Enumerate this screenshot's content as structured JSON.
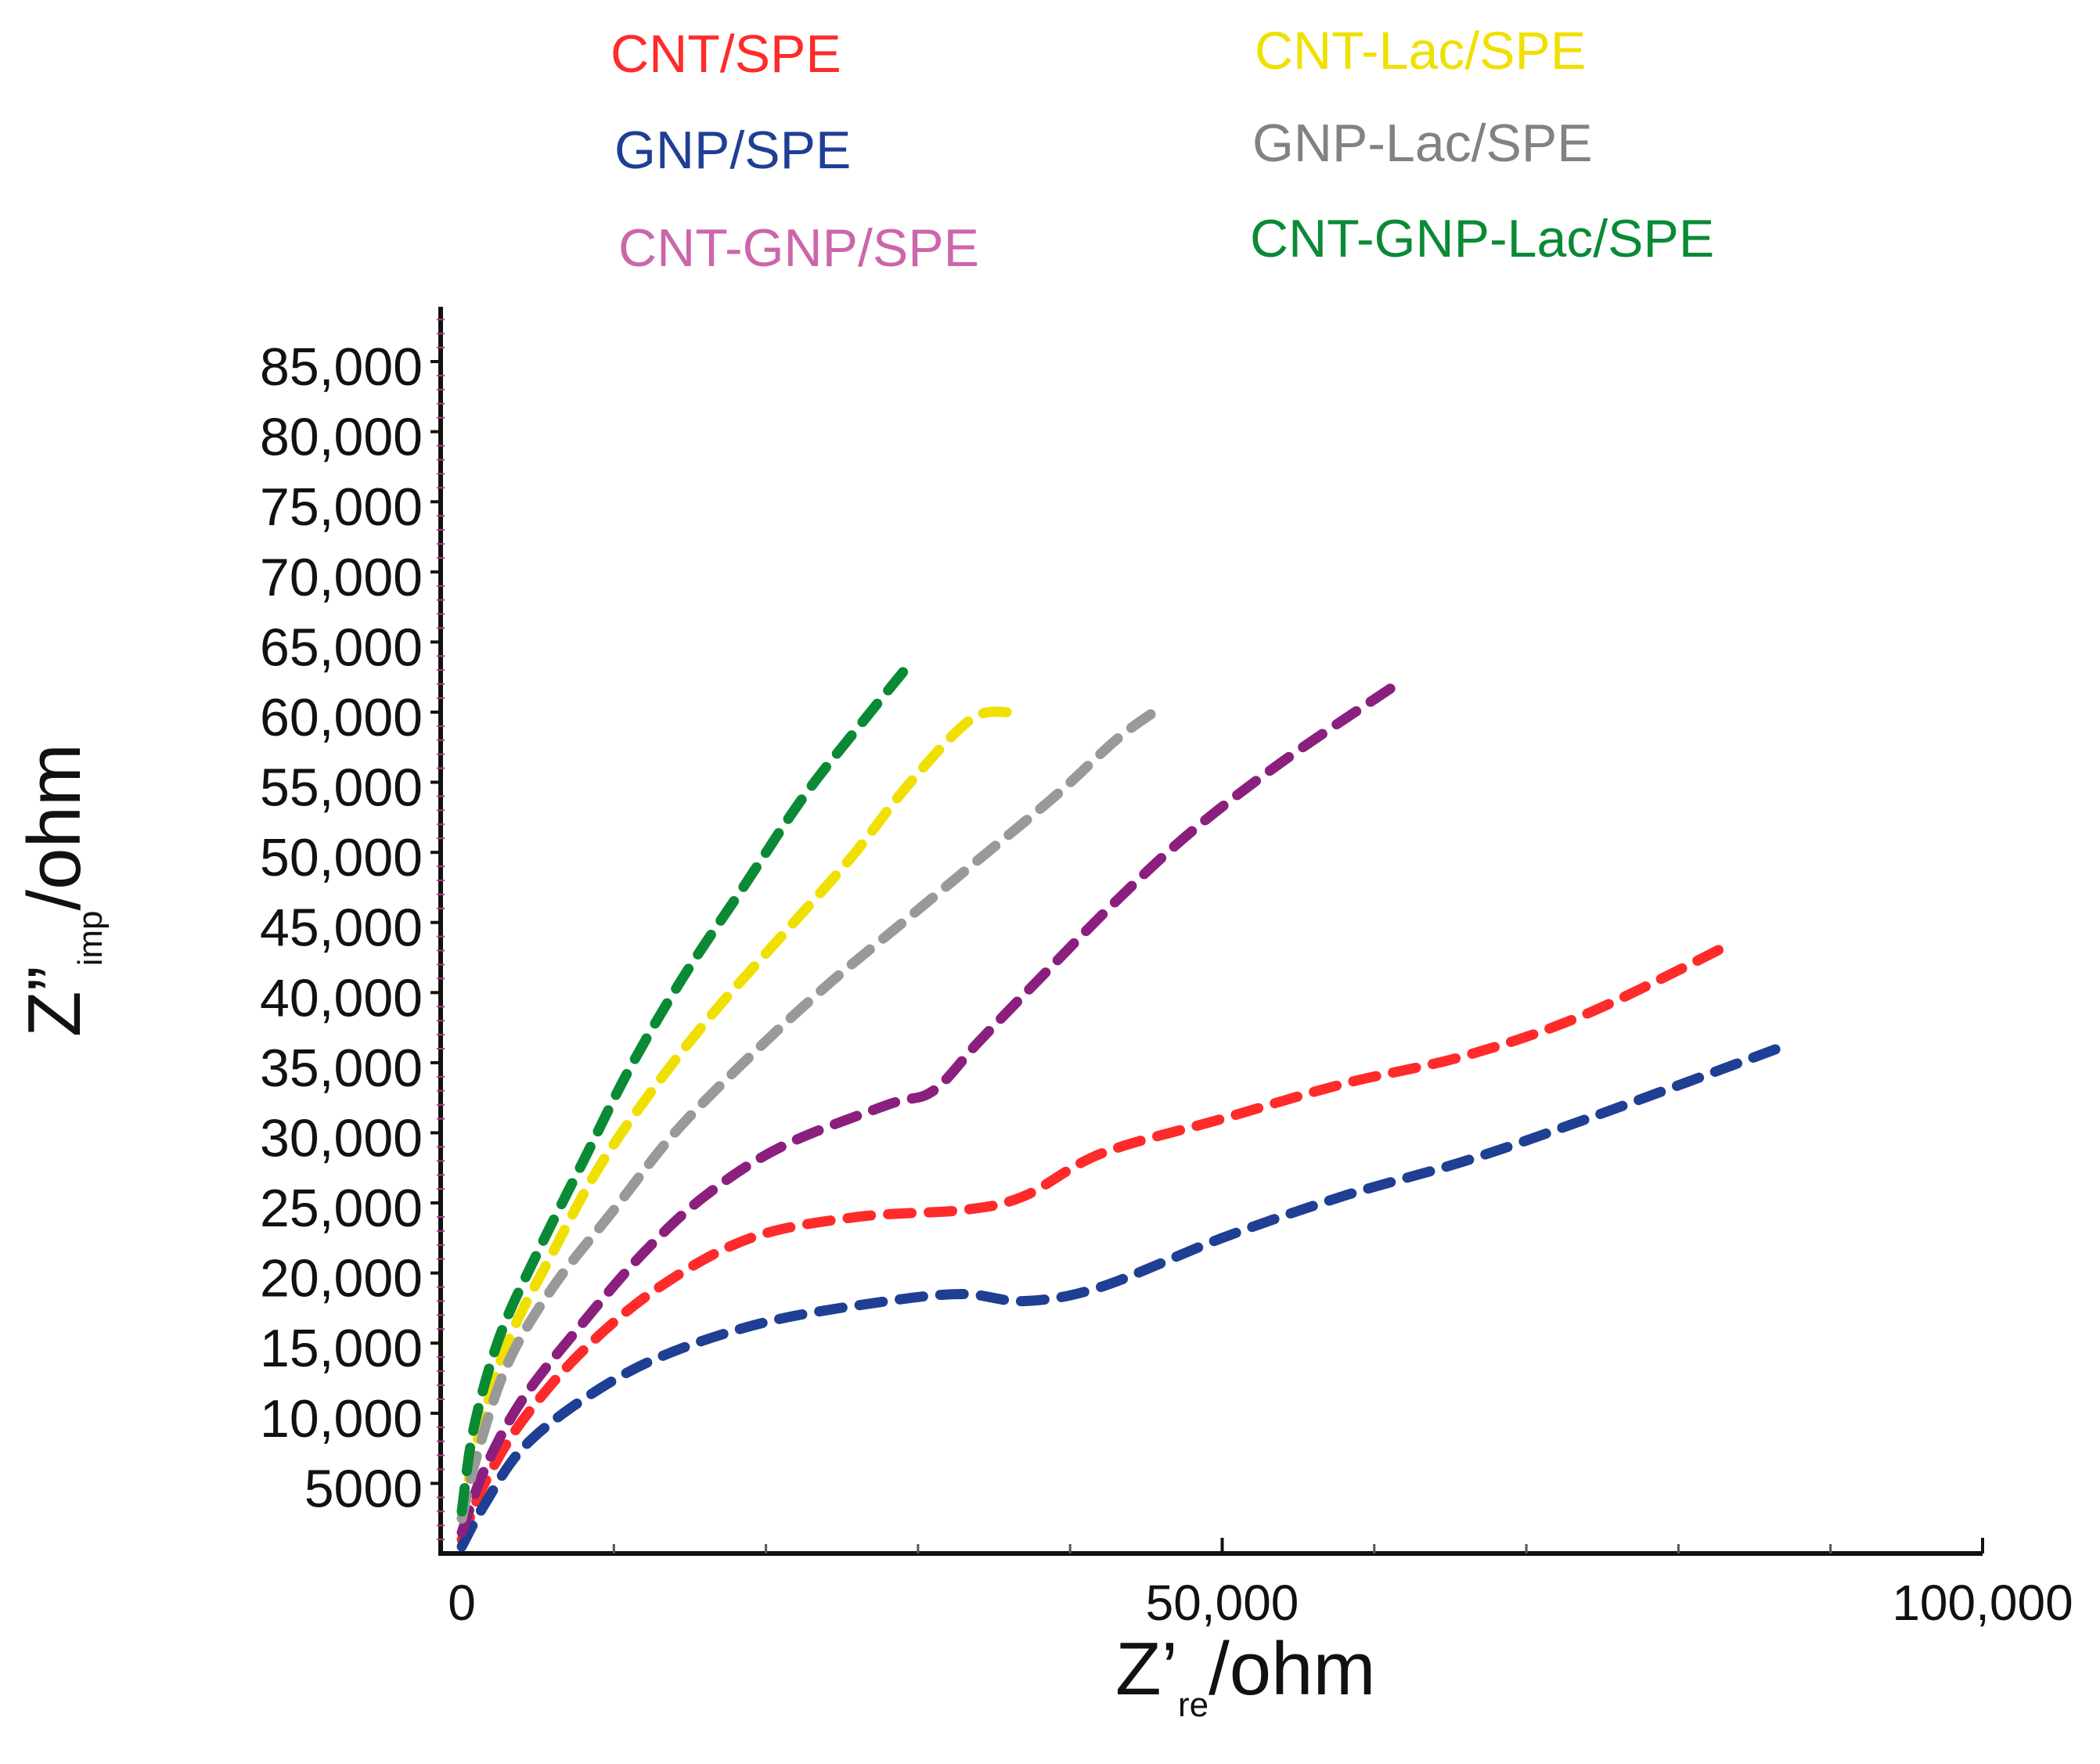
{
  "chart_data": {
    "type": "line",
    "title": "",
    "xlabel": {
      "main": "Z’",
      "sub": "re",
      "unit": "/ohm"
    },
    "ylabel": {
      "main": "Z”",
      "sub": "imp",
      "unit": "/ohm"
    },
    "xlim": [
      -1500,
      100000
    ],
    "ylim": [
      0,
      88000
    ],
    "xticks": [
      {
        "value": 0,
        "label": "0"
      },
      {
        "value": 50000,
        "label": "50,000"
      },
      {
        "value": 100000,
        "label": "100,000"
      }
    ],
    "yticks": [
      {
        "value": 5000,
        "label": "5000"
      },
      {
        "value": 10000,
        "label": "10,000"
      },
      {
        "value": 15000,
        "label": "15,000"
      },
      {
        "value": 20000,
        "label": "20,000"
      },
      {
        "value": 25000,
        "label": "25,000"
      },
      {
        "value": 30000,
        "label": "30,000"
      },
      {
        "value": 35000,
        "label": "35,000"
      },
      {
        "value": 40000,
        "label": "40,000"
      },
      {
        "value": 45000,
        "label": "45,000"
      },
      {
        "value": 50000,
        "label": "50,000"
      },
      {
        "value": 55000,
        "label": "55,000"
      },
      {
        "value": 60000,
        "label": "60,000"
      },
      {
        "value": 65000,
        "label": "65,000"
      },
      {
        "value": 70000,
        "label": "70,000"
      },
      {
        "value": 75000,
        "label": "75,000"
      },
      {
        "value": 80000,
        "label": "80,000"
      },
      {
        "value": 85000,
        "label": "85,000"
      }
    ],
    "line_style": "dashed",
    "series": [
      {
        "name": "CNT/SPE",
        "color": "#ff2a2a",
        "x": [
          0,
          1500,
          4000,
          8000,
          13000,
          19000,
          26000,
          33000,
          37000,
          42000,
          50000,
          58000,
          66000,
          74000,
          83500
        ],
        "y": [
          1000,
          5000,
          9500,
          14500,
          19000,
          22500,
          24000,
          24500,
          25500,
          28500,
          31000,
          33500,
          35500,
          38500,
          43500
        ]
      },
      {
        "name": "GNP/SPE",
        "color": "#1f3f94",
        "x": [
          0,
          1500,
          4000,
          8000,
          13000,
          20000,
          28000,
          33000,
          37000,
          42000,
          50000,
          58000,
          66000,
          74000,
          86500
        ],
        "y": [
          500,
          3500,
          7500,
          11000,
          14000,
          16500,
          18000,
          18500,
          18000,
          19000,
          22500,
          25500,
          28000,
          31000,
          36000
        ]
      },
      {
        "name": "CNT-GNP/SPE",
        "color": "#8b1f7e",
        "x": [
          0,
          1500,
          4000,
          8000,
          12000,
          16000,
          21000,
          28000,
          31000,
          34000,
          38000,
          43000,
          48000,
          54000,
          61500
        ],
        "y": [
          1500,
          6000,
          11000,
          16500,
          21500,
          25500,
          29000,
          32000,
          33000,
          36500,
          41000,
          46500,
          51500,
          56500,
          62000
        ]
      },
      {
        "name": "CNT-Lac/SPE",
        "color": "#f0e000",
        "x": [
          0,
          1000,
          3000,
          6000,
          9000,
          12500,
          16500,
          21000,
          25500,
          29500,
          33500,
          36000
        ],
        "y": [
          2500,
          8000,
          15000,
          21500,
          27500,
          33000,
          38500,
          44000,
          49500,
          55000,
          59500,
          60000
        ]
      },
      {
        "name": "GNP-Lac/SPE",
        "color": "#999999",
        "x": [
          0,
          1000,
          3000,
          6000,
          10000,
          14000,
          19000,
          24000,
          29000,
          34000,
          39000,
          43000,
          45500
        ],
        "y": [
          2500,
          7000,
          13500,
          19000,
          24500,
          30000,
          35500,
          40500,
          45000,
          49500,
          54000,
          58000,
          60000
        ]
      },
      {
        "name": "CNT-GNP-Lac/SPE",
        "color": "#0a8a35",
        "x": [
          0,
          800,
          2500,
          5000,
          8000,
          11000,
          14500,
          18500,
          22500,
          26500,
          29500
        ],
        "y": [
          3000,
          9000,
          15500,
          21500,
          28000,
          34500,
          41000,
          47500,
          54000,
          59500,
          63500
        ]
      }
    ]
  },
  "legend": {
    "left": [
      {
        "label": "CNT/SPE",
        "color": "#ff2a2a"
      },
      {
        "label": "GNP/SPE",
        "color": "#1f3f94"
      },
      {
        "label": "CNT-GNP/SPE",
        "color": "#cc66aa"
      }
    ],
    "right": [
      {
        "label": "CNT-Lac/SPE",
        "color": "#f0e000"
      },
      {
        "label": "GNP-Lac/SPE",
        "color": "#808285"
      },
      {
        "label": "CNT-GNP-Lac/SPE",
        "color": "#0a8a35"
      }
    ]
  }
}
